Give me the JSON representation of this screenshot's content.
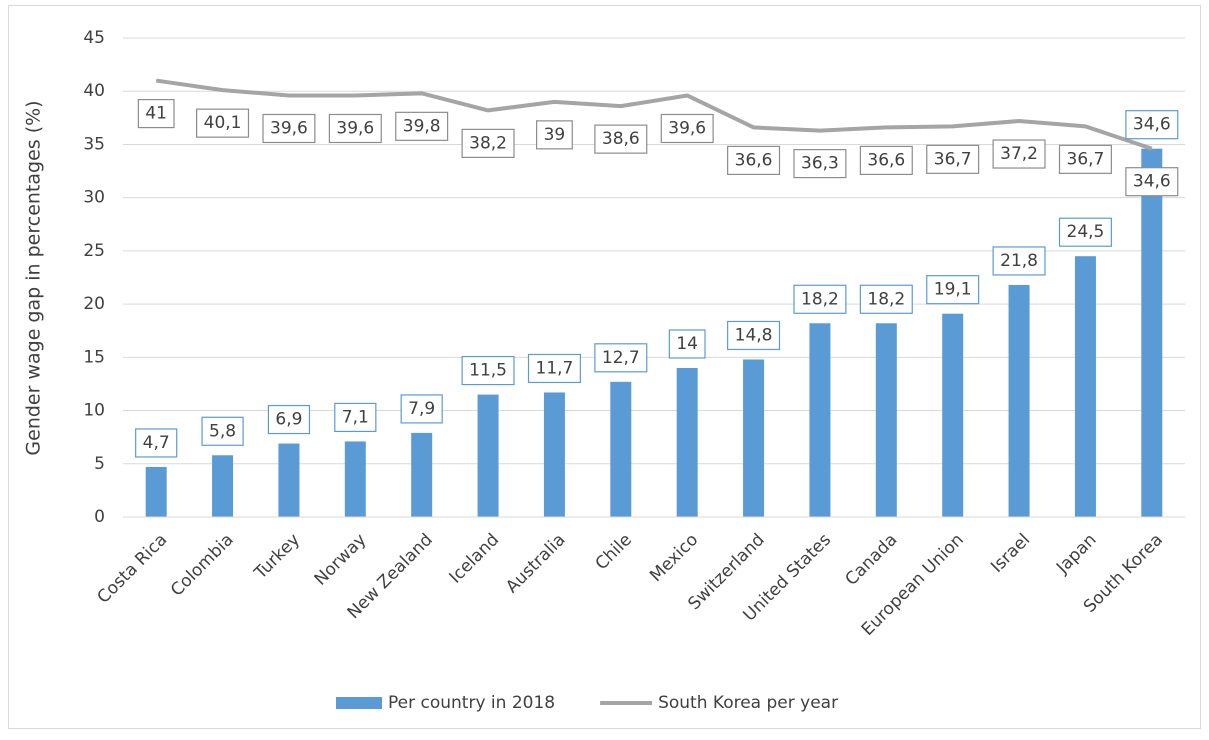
{
  "chart_data": {
    "type": "bar",
    "y_label": "Gender wage gap in percentages (%)",
    "categories": [
      "Costa Rica",
      "Colombia",
      "Turkey",
      "Norway",
      "New Zealand",
      "Iceland",
      "Australia",
      "Chile",
      "Mexico",
      "Switzerland",
      "United States",
      "Canada",
      "European Union",
      "Israel",
      "Japan",
      "South Korea"
    ],
    "series": [
      {
        "name": "Per country in 2018",
        "type": "bar",
        "color": "#5b9bd5",
        "values": [
          4.7,
          5.8,
          6.9,
          7.1,
          7.9,
          11.5,
          11.7,
          12.7,
          14,
          14.8,
          18.2,
          18.2,
          19.1,
          21.8,
          24.5,
          34.6
        ],
        "value_labels": [
          "4,7",
          "5,8",
          "6,9",
          "7,1",
          "7,9",
          "11,5",
          "11,7",
          "12,7",
          "14",
          "14,8",
          "18,2",
          "18,2",
          "19,1",
          "21,8",
          "24,5",
          "34,6"
        ]
      },
      {
        "name": "South Korea per year",
        "type": "line",
        "color": "#a5a5a5",
        "values": [
          41,
          40.1,
          39.6,
          39.6,
          39.8,
          38.2,
          39,
          38.6,
          39.6,
          36.6,
          36.3,
          36.6,
          36.7,
          37.2,
          36.7,
          34.6
        ],
        "value_labels": [
          "41",
          "40,1",
          "39,6",
          "39,6",
          "39,8",
          "38,2",
          "39",
          "38,6",
          "39,6",
          "36,6",
          "36,3",
          "36,6",
          "36,7",
          "37,2",
          "36,7",
          "34,6"
        ]
      }
    ],
    "ylim": [
      0,
      45
    ],
    "yticks": [
      0,
      5,
      10,
      15,
      20,
      25,
      30,
      35,
      40,
      45
    ],
    "grid": true,
    "legend": "bottom"
  }
}
